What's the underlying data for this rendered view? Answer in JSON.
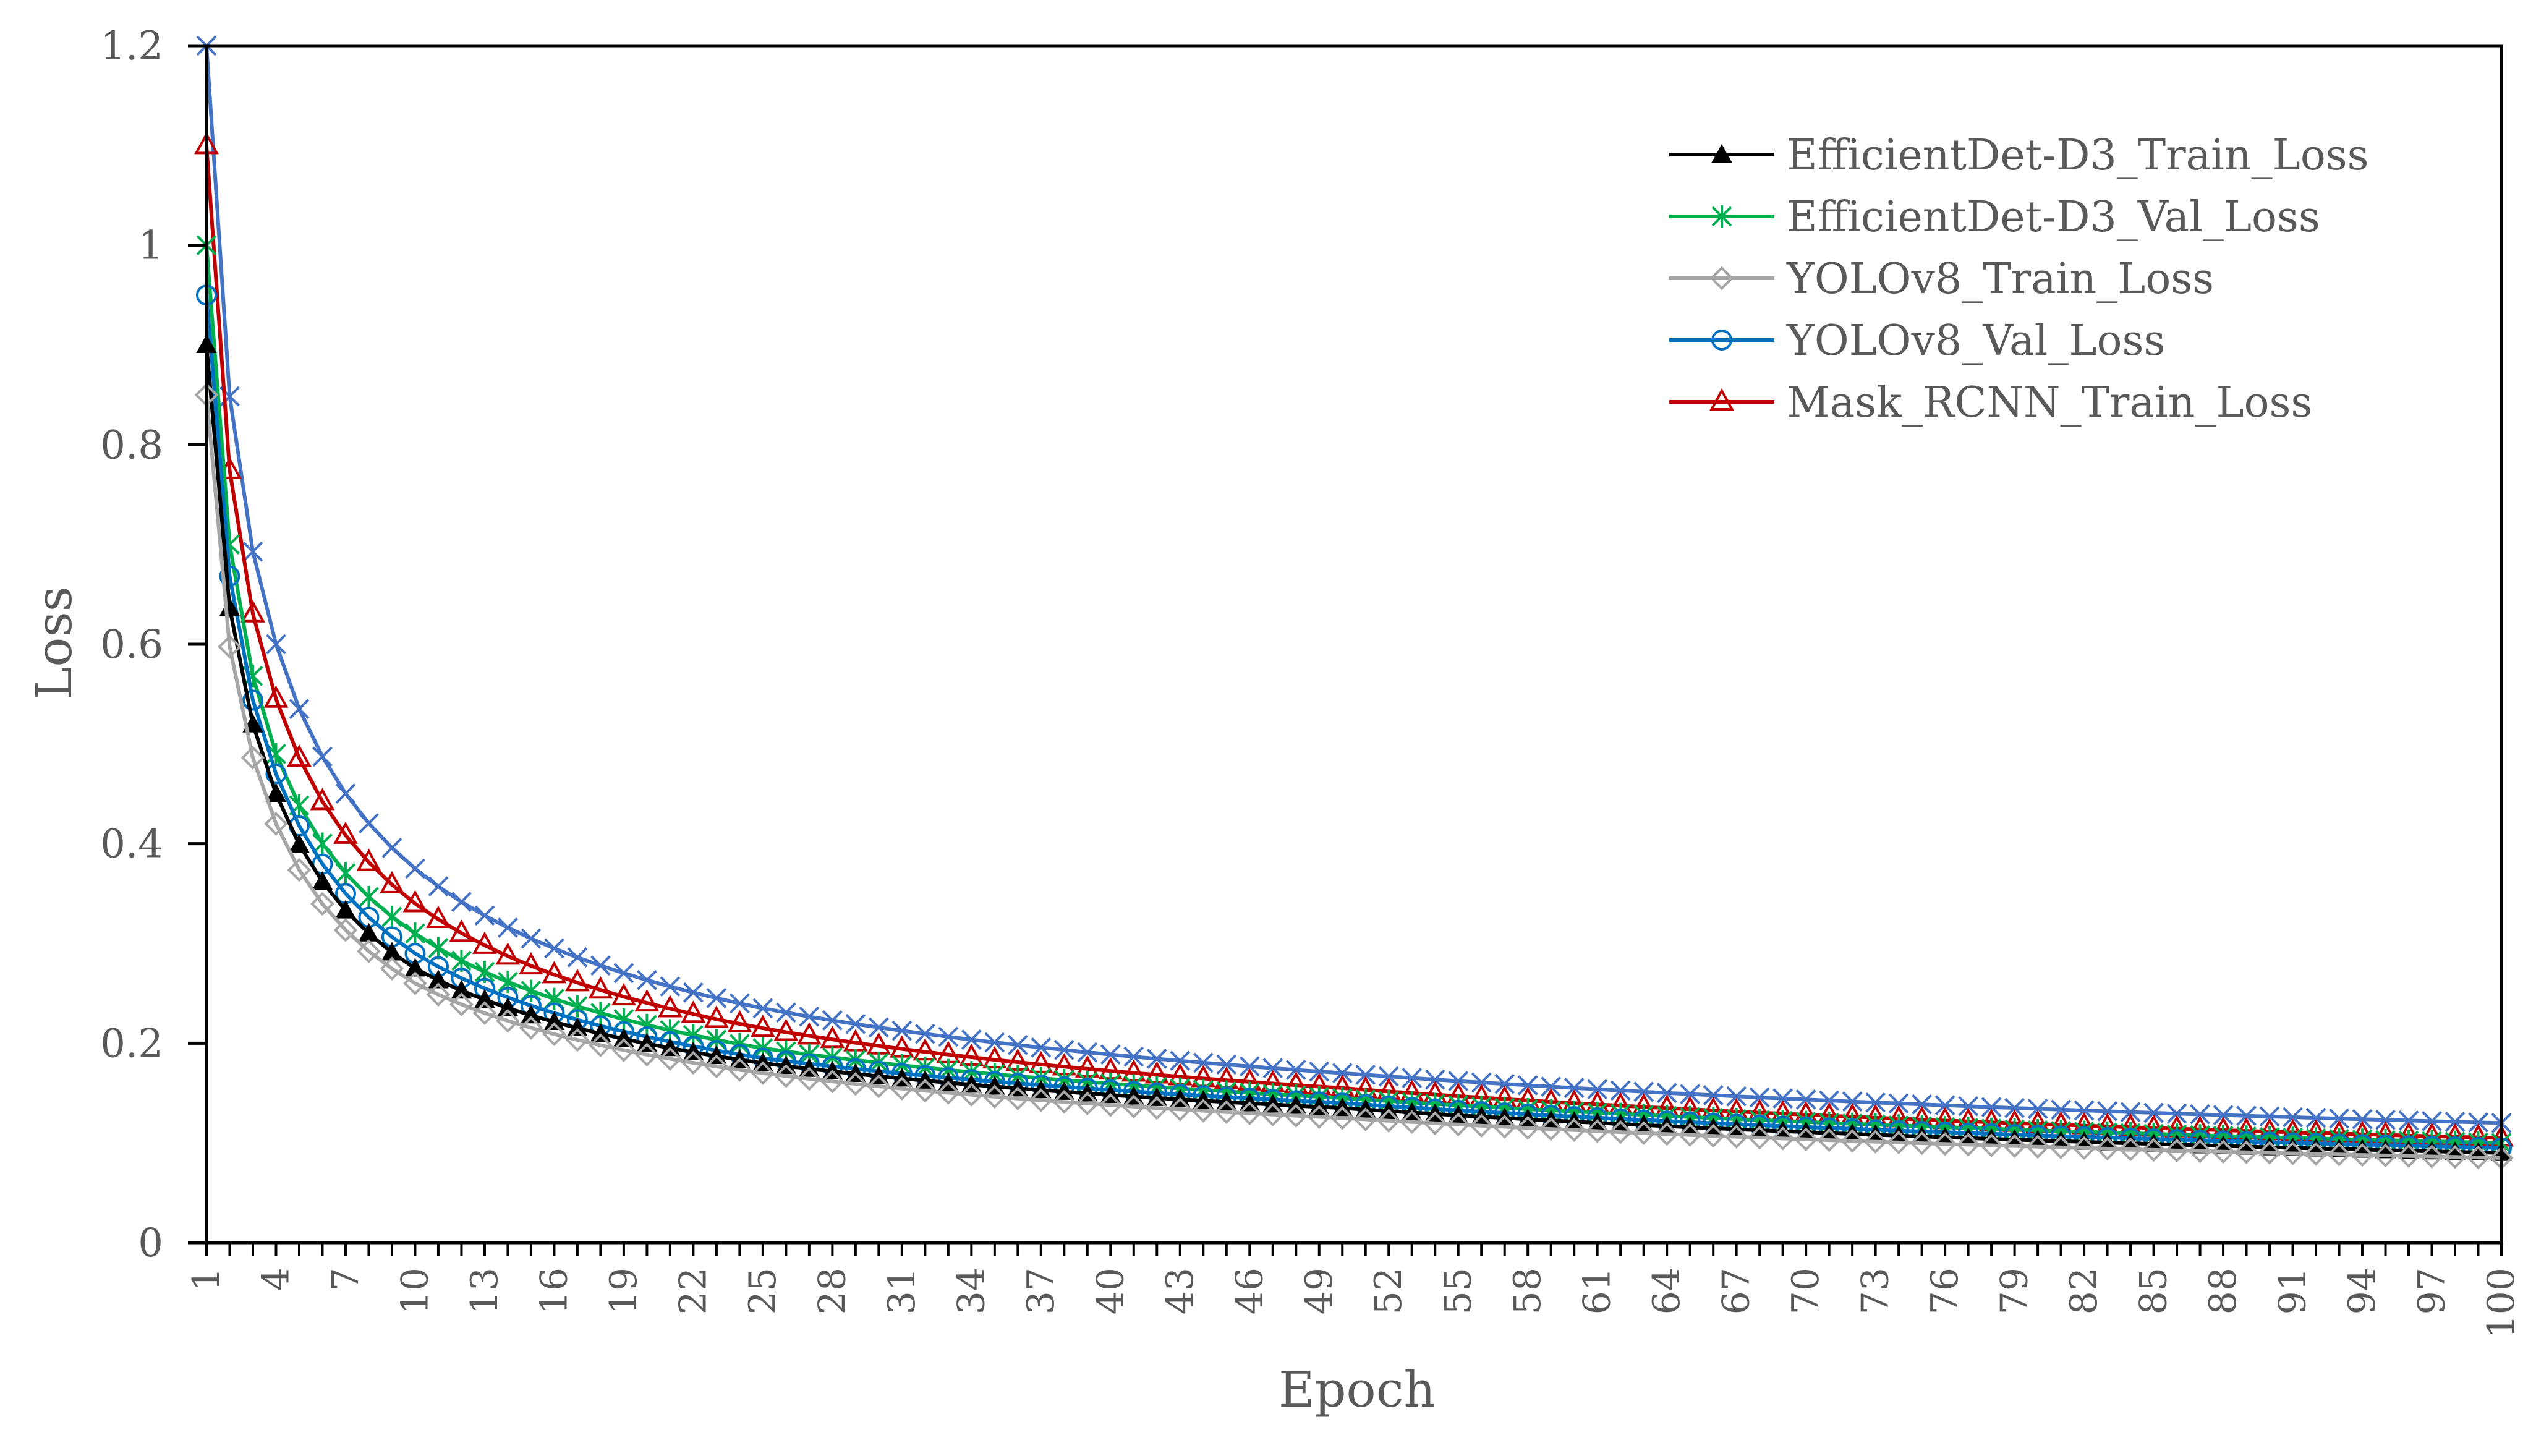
{
  "chart_data": {
    "type": "line",
    "title": "",
    "xlabel": "Epoch",
    "ylabel": "Loss",
    "ylim": [
      0,
      1.2
    ],
    "yticks": [
      "0",
      "0.2",
      "0.4",
      "0.6",
      "0.8",
      "1",
      "1.2"
    ],
    "xlim": [
      1,
      100
    ],
    "xticks": [
      1,
      4,
      7,
      10,
      13,
      16,
      19,
      22,
      25,
      28,
      31,
      34,
      37,
      40,
      43,
      46,
      49,
      52,
      55,
      58,
      61,
      64,
      67,
      70,
      73,
      76,
      79,
      82,
      85,
      88,
      91,
      94,
      97,
      100
    ],
    "legend_position": "top-right",
    "curve_model": "loss(epoch) = final + (start - final) * ((epoch - 1) / 99 + 0.06)^(-0.9) normalized; values read from the plotted curves",
    "series": [
      {
        "name": "EfficientDet-D3_Train_Loss",
        "color": "#000000",
        "marker": "filled-triangle",
        "start": 0.9,
        "epoch4": 0.45,
        "epoch10": 0.275,
        "epoch25": 0.18,
        "epoch50": 0.135,
        "epoch100": 0.09
      },
      {
        "name": "EfficientDet-D3_Val_Loss",
        "color": "#00b050",
        "marker": "asterisk",
        "start": 1.0,
        "epoch4": 0.49,
        "epoch10": 0.31,
        "epoch25": 0.195,
        "epoch50": 0.145,
        "epoch100": 0.1
      },
      {
        "name": "YOLOv8_Train_Loss",
        "color": "#a6a6a6",
        "marker": "diamond",
        "start": 0.85,
        "epoch4": 0.42,
        "epoch10": 0.26,
        "epoch25": 0.17,
        "epoch50": 0.125,
        "epoch100": 0.085
      },
      {
        "name": "YOLOv8_Val_Loss",
        "color": "#0070c0",
        "marker": "circle",
        "start": 0.95,
        "epoch4": 0.47,
        "epoch10": 0.29,
        "epoch25": 0.185,
        "epoch50": 0.14,
        "epoch100": 0.095
      },
      {
        "name": "Mask_RCNN_Train_Loss",
        "color": "#c00000",
        "marker": "triangle",
        "start": 1.1,
        "epoch4": 0.545,
        "epoch10": 0.34,
        "epoch25": 0.215,
        "epoch50": 0.155,
        "epoch100": 0.105
      },
      {
        "name": "",
        "color": "#4472c4",
        "marker": "x",
        "start": 1.2,
        "epoch4": 0.6,
        "epoch10": 0.375,
        "epoch25": 0.235,
        "epoch50": 0.17,
        "epoch100": 0.12
      }
    ]
  }
}
